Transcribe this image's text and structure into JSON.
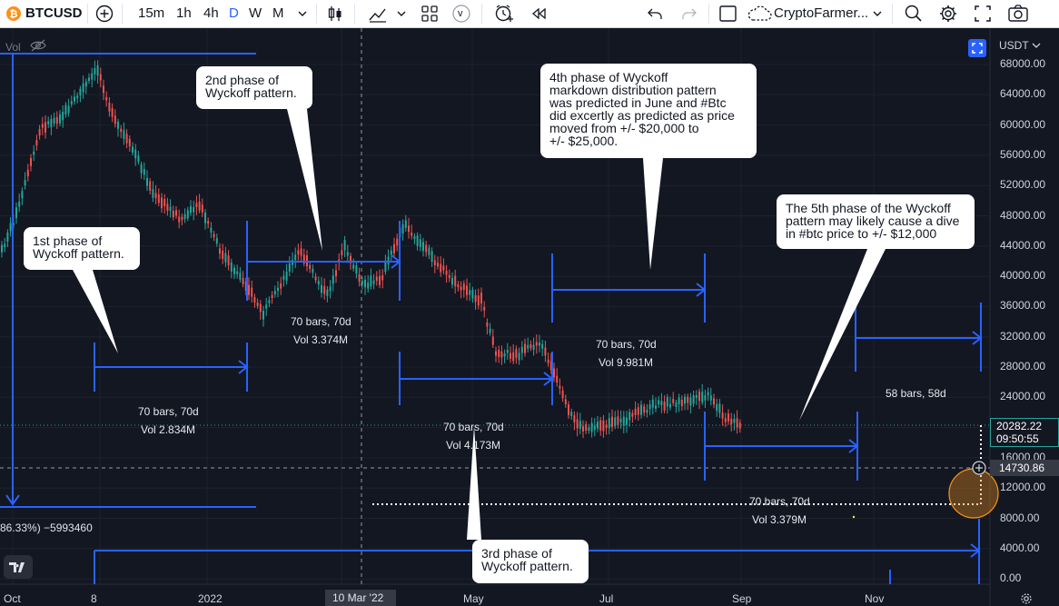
{
  "toolbar": {
    "symbol": "BTCUSD",
    "intervals": [
      "15m",
      "1h",
      "4h",
      "D",
      "W",
      "M"
    ],
    "active_interval": "D",
    "compare_badge": "v",
    "layout_name": "CryptoFarmer...",
    "colors": {
      "active": "#2962ff",
      "text": "#131722",
      "btc": "#f7931a"
    }
  },
  "chart": {
    "volume_label": "Vol",
    "currency": "USDT",
    "price_axis": [
      "68000.00",
      "64000.00",
      "60000.00",
      "56000.00",
      "52000.00",
      "48000.00",
      "44000.00",
      "40000.00",
      "36000.00",
      "32000.00",
      "28000.00",
      "24000.00",
      "20000.00",
      "16000.00",
      "12000.00",
      "8000.00",
      "4000.00",
      "0.00"
    ],
    "time_axis": [
      "Oct",
      "8",
      "2022",
      "Mar",
      "May",
      "Jul",
      "Sep",
      "Nov"
    ],
    "crosshair_date": "10 Mar '22",
    "last_price": "20282.22",
    "countdown": "09:50:55",
    "crosshair_price": "14730.86",
    "left_readout": "86.33%) −5993460",
    "colors": {
      "up": "#26a69a",
      "down": "#ef5350",
      "measure": "#2962ff",
      "bg": "#131722"
    }
  },
  "callouts": [
    {
      "id": "phase1",
      "text": "1st phase of\nWyckoff pattern."
    },
    {
      "id": "phase2",
      "text": "2nd phase of\nWyckoff pattern."
    },
    {
      "id": "phase3",
      "text": "3rd phase of\nWyckoff pattern."
    },
    {
      "id": "phase4",
      "text": "4th phase of Wyckoff\nmarkdown distribution pattern\nwas predicted in June and #Btc\ndid excertly as predicted as price\nmoved from +/- $20,000 to\n+/- $25,000."
    },
    {
      "id": "phase5",
      "text": "The 5th phase of the Wyckoff\npattern may likely cause a dive\nin #btc price to +/- $12,000"
    }
  ],
  "measures": [
    {
      "bars": "70 bars, 70d",
      "vol": "Vol 2.834M"
    },
    {
      "bars": "70 bars, 70d",
      "vol": "Vol 3.374M"
    },
    {
      "bars": "70 bars, 70d",
      "vol": "Vol 4.173M"
    },
    {
      "bars": "70 bars, 70d",
      "vol": "Vol 9.981M"
    },
    {
      "bars": "70 bars, 70d",
      "vol": "Vol 3.379M"
    },
    {
      "bars": "58 bars, 58d",
      "vol": ""
    }
  ]
}
